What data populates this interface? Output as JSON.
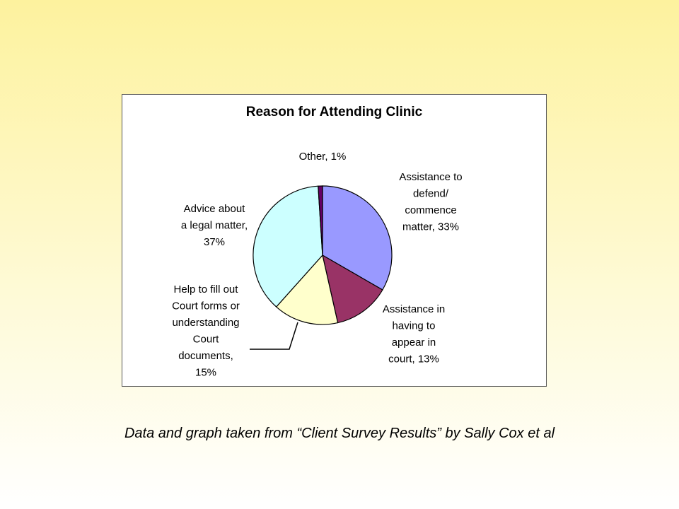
{
  "chart_data": {
    "type": "pie",
    "title": "Reason for Attending Clinic",
    "slices": [
      {
        "name": "Assistance to defend/ commence matter",
        "value": 33,
        "color": "#9999ff",
        "label_lines": [
          "Assistance to",
          "defend/",
          "commence",
          "matter, 33%"
        ]
      },
      {
        "name": "Assistance in having to appear in court",
        "value": 13,
        "color": "#993366",
        "label_lines": [
          "Assistance in",
          "having to",
          "appear in",
          "court, 13%"
        ]
      },
      {
        "name": "Help to fill out Court forms or understanding Court documents",
        "value": 15,
        "color": "#ffffcc",
        "label_lines": [
          "Help to fill out",
          "Court forms or",
          "understanding",
          "Court",
          "documents,",
          "15%"
        ]
      },
      {
        "name": "Advice about a legal matter",
        "value": 37,
        "color": "#ccffff",
        "label_lines": [
          "Advice about",
          "a legal matter,",
          "37%"
        ]
      },
      {
        "name": "Other",
        "value": 1,
        "color": "#660066",
        "label_lines": [
          "Other, 1%"
        ]
      }
    ]
  },
  "caption": "Data and graph taken from “Client Survey Results” by Sally Cox et al"
}
